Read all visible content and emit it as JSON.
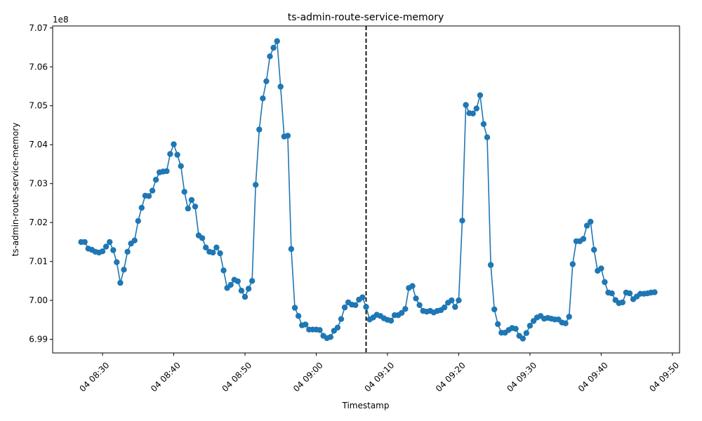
{
  "chart_data": {
    "type": "line",
    "title": "ts-admin-route-service-memory",
    "xlabel": "Timestamp",
    "ylabel": "ts-admin-route-service-memory",
    "y_offset_label": "1e8",
    "x_start": "04 08:27",
    "x_step_minutes": 0.5,
    "xlim": [
      "04 08:23",
      "04 09:51"
    ],
    "ylim": [
      698650000,
      707050000
    ],
    "x_ticks": [
      "04 08:30",
      "04 08:40",
      "04 08:50",
      "04 09:00",
      "04 09:10",
      "04 09:20",
      "04 09:30",
      "04 09:40",
      "04 09:50"
    ],
    "y_ticks": [
      {
        "value": 699000000,
        "label": "6.99"
      },
      {
        "value": 700000000,
        "label": "7.00"
      },
      {
        "value": 701000000,
        "label": "7.01"
      },
      {
        "value": 702000000,
        "label": "7.02"
      },
      {
        "value": 703000000,
        "label": "7.03"
      },
      {
        "value": 704000000,
        "label": "7.04"
      },
      {
        "value": 705000000,
        "label": "7.05"
      },
      {
        "value": 706000000,
        "label": "7.06"
      },
      {
        "value": 707000000,
        "label": "7.07"
      }
    ],
    "vline_x": "04 09:07",
    "line_color": "#1f77b4",
    "vline_color": "#000000",
    "grid": false,
    "series": [
      {
        "values": [
          701500000,
          701500000,
          701330000,
          701300000,
          701250000,
          701230000,
          701260000,
          701380000,
          701500000,
          701290000,
          700980000,
          700450000,
          700790000,
          701250000,
          701460000,
          701540000,
          702040000,
          702380000,
          702690000,
          702680000,
          702820000,
          703100000,
          703290000,
          703310000,
          703320000,
          703760000,
          704010000,
          703740000,
          703450000,
          702790000,
          702360000,
          702580000,
          702410000,
          701670000,
          701600000,
          701360000,
          701250000,
          701230000,
          701360000,
          701210000,
          700770000,
          700320000,
          700400000,
          700530000,
          700490000,
          700250000,
          700090000,
          700300000,
          700500000,
          702970000,
          704390000,
          705190000,
          705630000,
          706270000,
          706490000,
          706660000,
          705490000,
          704210000,
          704230000,
          701320000,
          699810000,
          699600000,
          699360000,
          699380000,
          699250000,
          699250000,
          699250000,
          699240000,
          699090000,
          699030000,
          699060000,
          699220000,
          699300000,
          699520000,
          699820000,
          699950000,
          699890000,
          699880000,
          700020000,
          700080000,
          699830000,
          699510000,
          699560000,
          699630000,
          699600000,
          699540000,
          699500000,
          699480000,
          699620000,
          699620000,
          699680000,
          699780000,
          700320000,
          700370000,
          700050000,
          699880000,
          699730000,
          699710000,
          699730000,
          699690000,
          699730000,
          699750000,
          699820000,
          699940000,
          700000000,
          699830000,
          700000000,
          702050000,
          705020000,
          704810000,
          704800000,
          704930000,
          705270000,
          704530000,
          704190000,
          700910000,
          699770000,
          699390000,
          699170000,
          699170000,
          699240000,
          699290000,
          699270000,
          699090000,
          699020000,
          699160000,
          699350000,
          699470000,
          699560000,
          699600000,
          699530000,
          699550000,
          699530000,
          699510000,
          699510000,
          699430000,
          699410000,
          699580000,
          700930000,
          701520000,
          701520000,
          701580000,
          701920000,
          702020000,
          701300000,
          700760000,
          700820000,
          700470000,
          700200000,
          700180000,
          700010000,
          699930000,
          699950000,
          700200000,
          700180000,
          700030000,
          700100000,
          700170000,
          700170000,
          700180000,
          700200000,
          700210000
        ]
      }
    ]
  }
}
